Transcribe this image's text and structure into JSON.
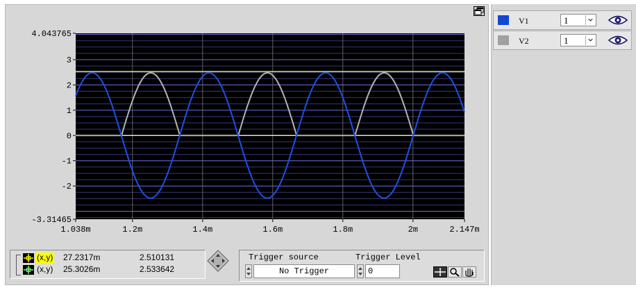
{
  "graph": {
    "colors": {
      "plot_bg": "#000000",
      "grid": "#7c7cff",
      "v1": "#1f50e6",
      "v2": "#b4b4b4",
      "cursor": "#d2e664",
      "zero": "#ffffff"
    },
    "y_tick_labels": [
      "4.043765",
      "3",
      "2",
      "1",
      "0",
      "-1",
      "-2",
      "-3.31465"
    ],
    "x_tick_labels": [
      "1.038m",
      "1.2m",
      "1.4m",
      "1.6m",
      "1.8m",
      "2m",
      "2.147m"
    ]
  },
  "chart_data": {
    "type": "line",
    "title": "",
    "xlabel": "",
    "ylabel": "",
    "xlim": [
      0.001038,
      0.002147
    ],
    "ylim": [
      -3.31465,
      4.043765
    ],
    "series": [
      {
        "name": "V1",
        "waveform": "sine",
        "amplitude": 2.48,
        "period": 0.000333,
        "peak_x": [
          0.001085,
          0.001418,
          0.001751,
          0.002084
        ],
        "color": "#1f50e6"
      },
      {
        "name": "V2",
        "waveform": "half-wave rectified sine",
        "amplitude": 2.48,
        "period": 0.000333,
        "peak_x": [
          0.001252,
          0.001585,
          0.001918
        ],
        "color": "#b4b4b4"
      }
    ],
    "cursor_level": 2.53,
    "grid": true
  },
  "channels": [
    {
      "name": "V1",
      "color": "#1446d2",
      "value": "1",
      "icon": "eye-icon"
    },
    {
      "name": "V2",
      "color": "#a0a0a0",
      "value": "1",
      "icon": "eye-icon"
    }
  ],
  "cursors": [
    {
      "label": "(x,y)",
      "x": "27.2317m",
      "y": "2.510131",
      "highlight": "#ffff00"
    },
    {
      "label": "(x,y)",
      "x": "25.3026m",
      "y": "2.533642",
      "highlight": ""
    }
  ],
  "trigger": {
    "source_label": "Trigger source",
    "source_value": "No Trigger",
    "level_label": "Trigger Level",
    "level_value": "0"
  }
}
